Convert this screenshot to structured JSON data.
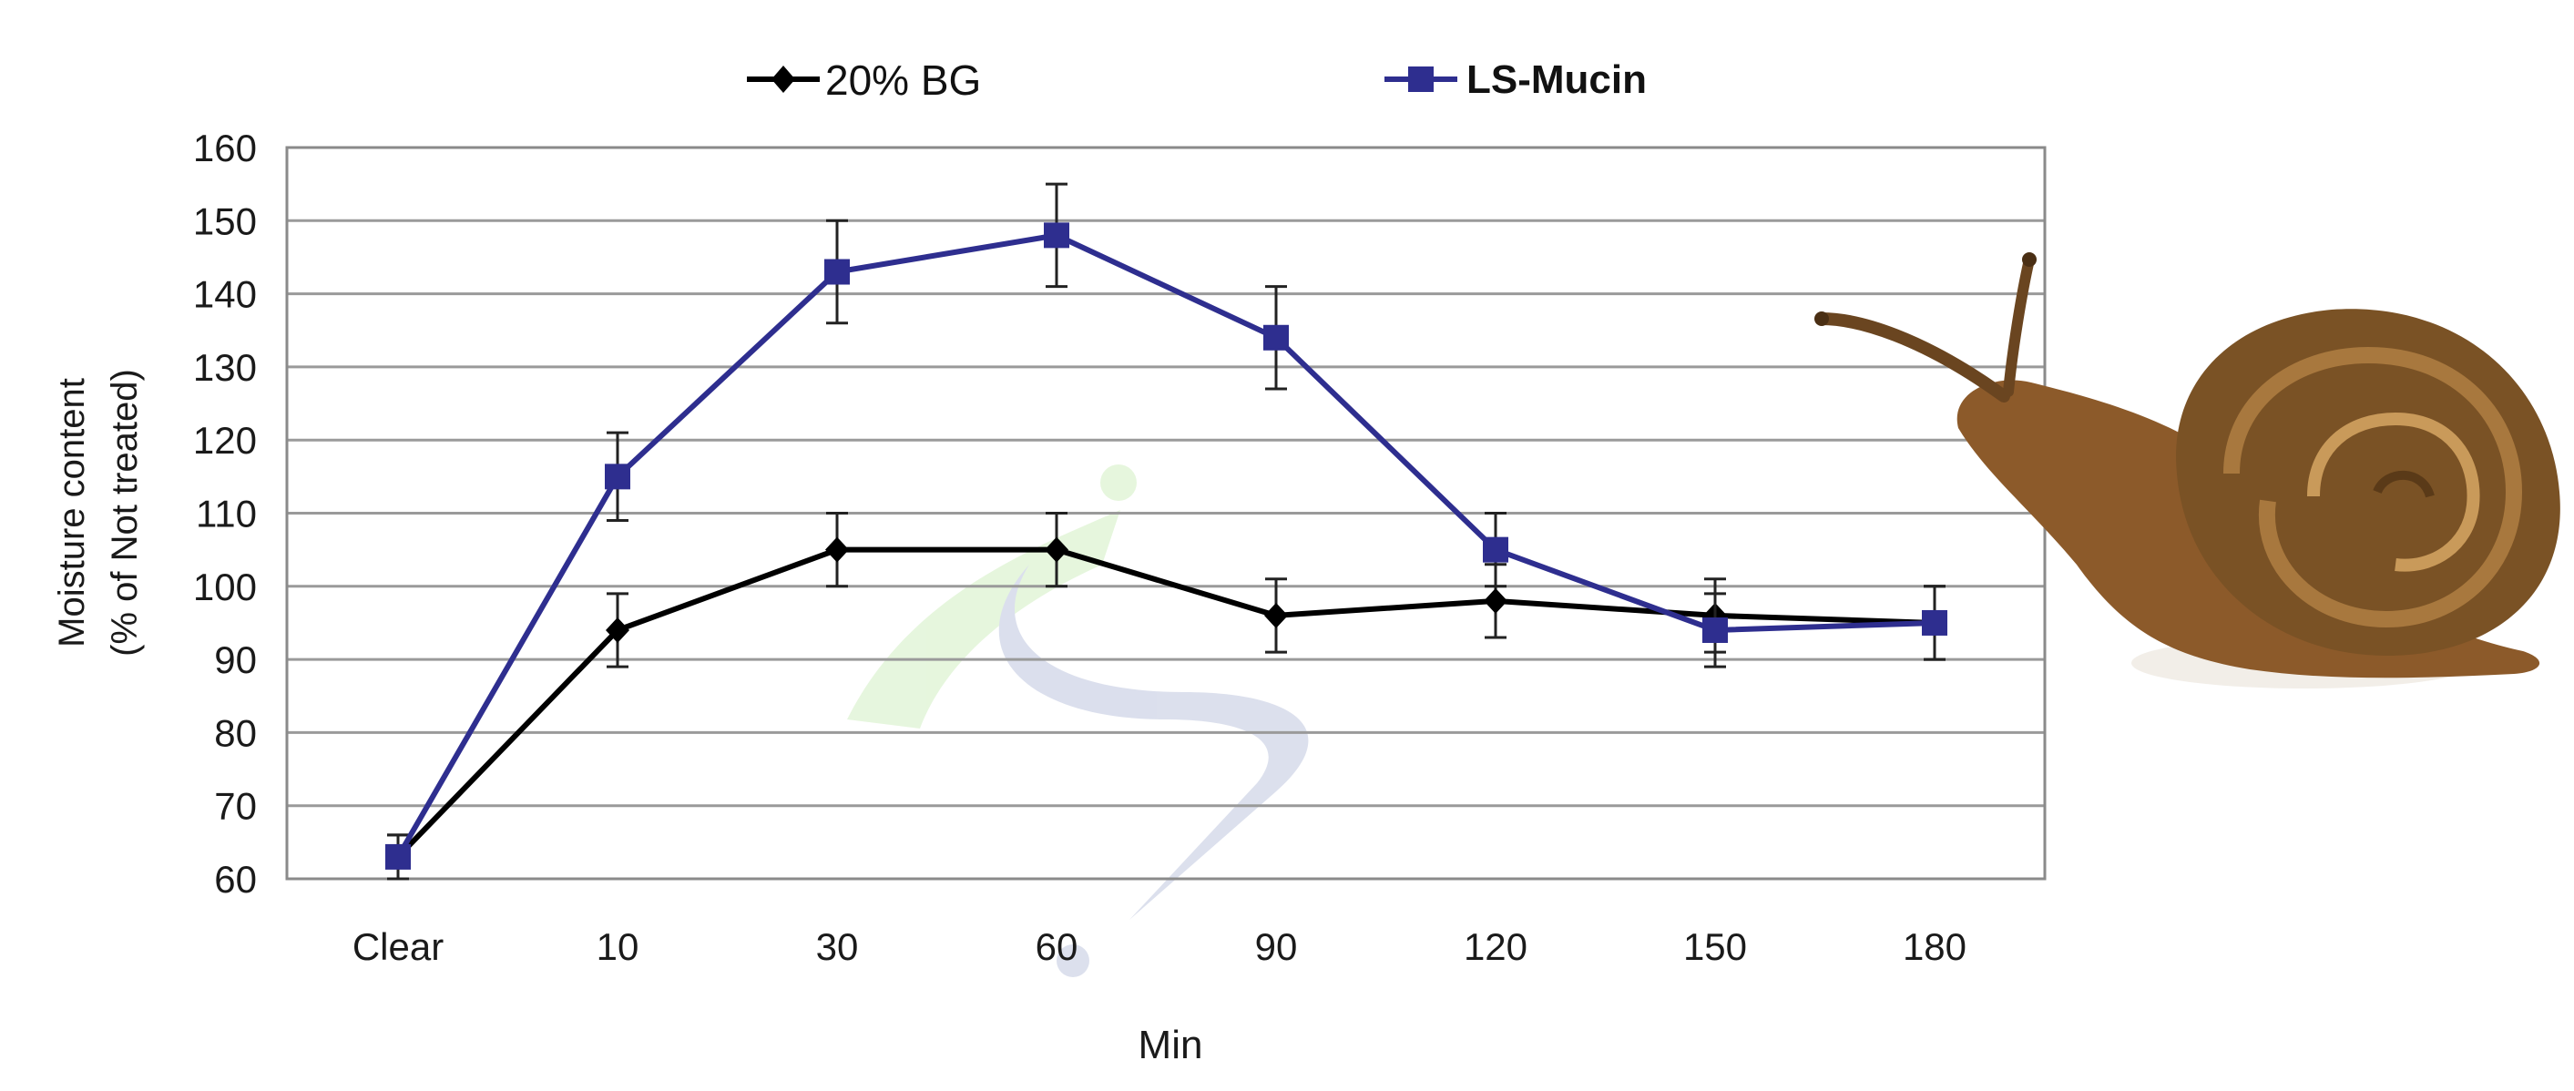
{
  "chart_data": {
    "type": "line",
    "categories": [
      "Clear",
      "10",
      "30",
      "60",
      "90",
      "120",
      "150",
      "180"
    ],
    "xlabel": "Min",
    "ylabel": [
      "Moisture content",
      "(% of Not treated)"
    ],
    "ylim": [
      60,
      160
    ],
    "yticks": [
      60,
      70,
      80,
      90,
      100,
      110,
      120,
      130,
      140,
      150,
      160
    ],
    "grid": true,
    "legend_position": "top",
    "series": [
      {
        "name": "20% BG",
        "color": "#000000",
        "marker": "diamond",
        "values": [
          63,
          94,
          105,
          105,
          96,
          98,
          96,
          95
        ],
        "errors": [
          3,
          5,
          5,
          5,
          5,
          5,
          5,
          5
        ]
      },
      {
        "name": "LS-Mucin",
        "color": "#2e2e8f",
        "marker": "square",
        "values": [
          63,
          115,
          143,
          148,
          134,
          105,
          94,
          95
        ],
        "errors": [
          3,
          6,
          7,
          7,
          7,
          5,
          5,
          5
        ]
      }
    ]
  },
  "colors": {
    "grid": "#9a9a9a",
    "axis": "#555555",
    "snail_shell": "#7a5225",
    "snail_body": "#8c5a2a"
  }
}
